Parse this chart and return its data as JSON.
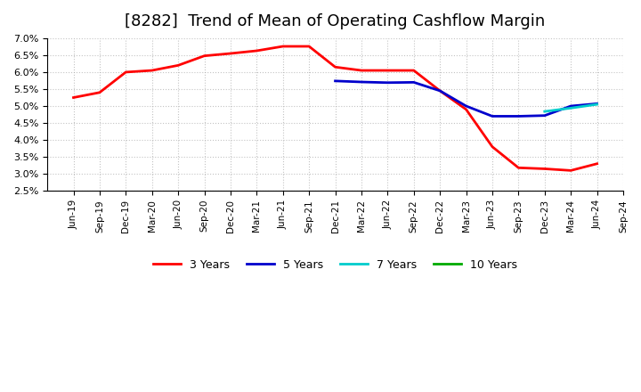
{
  "title": "[8282]  Trend of Mean of Operating Cashflow Margin",
  "title_fontsize": 13,
  "background_color": "#ffffff",
  "grid_color": "#aaaaaa",
  "ylim": [
    0.025,
    0.07
  ],
  "yticks": [
    0.025,
    0.03,
    0.035,
    0.04,
    0.045,
    0.05,
    0.055,
    0.06,
    0.065,
    0.07
  ],
  "series": {
    "3 Years": {
      "color": "#ff0000",
      "linewidth": 2.0,
      "dates": [
        "Jun-19",
        "Sep-19",
        "Dec-19",
        "Mar-20",
        "Jun-20",
        "Sep-20",
        "Dec-20",
        "Mar-21",
        "Jun-21",
        "Sep-21",
        "Dec-21",
        "Mar-22",
        "Jun-22",
        "Sep-22",
        "Dec-22",
        "Mar-23",
        "Jun-23",
        "Sep-23",
        "Dec-23",
        "Mar-24",
        "Jun-24"
      ],
      "values": [
        0.0525,
        0.054,
        0.06,
        0.0605,
        0.062,
        0.0648,
        0.0655,
        0.0663,
        0.0676,
        0.0676,
        0.0615,
        0.0605,
        0.0605,
        0.0605,
        0.0545,
        0.049,
        0.038,
        0.0318,
        0.0315,
        0.031,
        0.033
      ]
    },
    "5 Years": {
      "color": "#0000cc",
      "linewidth": 2.0,
      "dates": [
        "Dec-21",
        "Mar-22",
        "Jun-22",
        "Sep-22",
        "Dec-22",
        "Mar-23",
        "Jun-23",
        "Sep-23",
        "Dec-23",
        "Mar-24",
        "Jun-24"
      ],
      "values": [
        0.0574,
        0.0571,
        0.0569,
        0.057,
        0.0545,
        0.05,
        0.047,
        0.047,
        0.0472,
        0.05,
        0.0507
      ]
    },
    "7 Years": {
      "color": "#00cccc",
      "linewidth": 2.0,
      "dates": [
        "Dec-23",
        "Mar-24",
        "Jun-24"
      ],
      "values": [
        0.0484,
        0.0494,
        0.0505
      ]
    },
    "10 Years": {
      "color": "#00aa00",
      "linewidth": 2.0,
      "dates": [],
      "values": []
    }
  },
  "xtick_labels": [
    "Jun-19",
    "Sep-19",
    "Dec-19",
    "Mar-20",
    "Jun-20",
    "Sep-20",
    "Dec-20",
    "Mar-21",
    "Jun-21",
    "Sep-21",
    "Dec-21",
    "Mar-22",
    "Jun-22",
    "Sep-22",
    "Dec-22",
    "Mar-23",
    "Jun-23",
    "Sep-23",
    "Dec-23",
    "Mar-24",
    "Jun-24",
    "Sep-24"
  ],
  "legend_labels": [
    "3 Years",
    "5 Years",
    "7 Years",
    "10 Years"
  ],
  "legend_colors": [
    "#ff0000",
    "#0000cc",
    "#00cccc",
    "#00aa00"
  ]
}
